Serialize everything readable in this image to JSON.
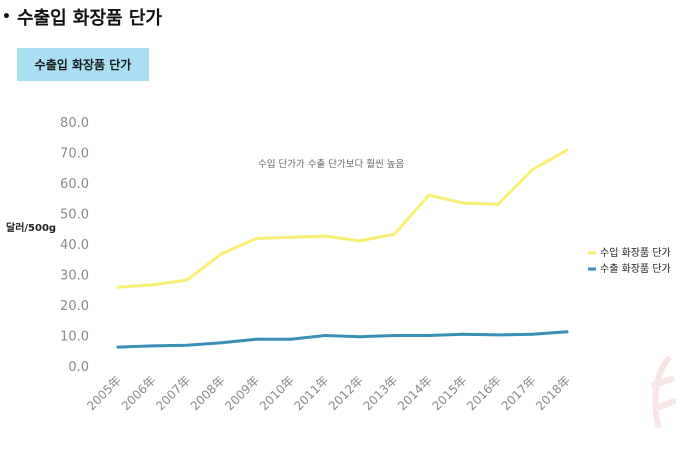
{
  "heading": {
    "bullet": "•",
    "title": "수출입 화장품 단가"
  },
  "tag": {
    "label": "수출입 화장품 단가"
  },
  "colors": {
    "import": "#f8f075",
    "export": "#3a8fb7",
    "tag_bg": "#a9def3"
  },
  "chart_data": {
    "type": "line",
    "title": "수출입 화장품 단가",
    "ylabel": "달러/500g",
    "xlabel": "",
    "ylim": [
      0,
      80
    ],
    "yticks": [
      "80.0",
      "70.0",
      "60.0",
      "50.0",
      "40.0",
      "30.0",
      "20.0",
      "10.0",
      "0.0"
    ],
    "categories": [
      "2005年",
      "2006年",
      "2007年",
      "2008年",
      "2009年",
      "2010年",
      "2011年",
      "2012年",
      "2013年",
      "2014年",
      "2015年",
      "2016年",
      "2017年",
      "2018年"
    ],
    "series": [
      {
        "name": "수입 화장품 단가",
        "key": "import",
        "values": [
          25.8,
          26.6,
          28.2,
          36.8,
          41.8,
          42.2,
          42.6,
          41.0,
          43.2,
          56.0,
          53.4,
          53.0,
          64.4,
          70.8
        ]
      },
      {
        "name": "수출 화장품 단가",
        "key": "export",
        "values": [
          6.2,
          6.6,
          6.8,
          7.6,
          8.8,
          8.8,
          10.0,
          9.6,
          10.0,
          10.0,
          10.4,
          10.2,
          10.4,
          11.2
        ]
      }
    ],
    "annotation": "수입 단가가 수출 단가보다 훨씬 높음",
    "legend_position": "right"
  }
}
